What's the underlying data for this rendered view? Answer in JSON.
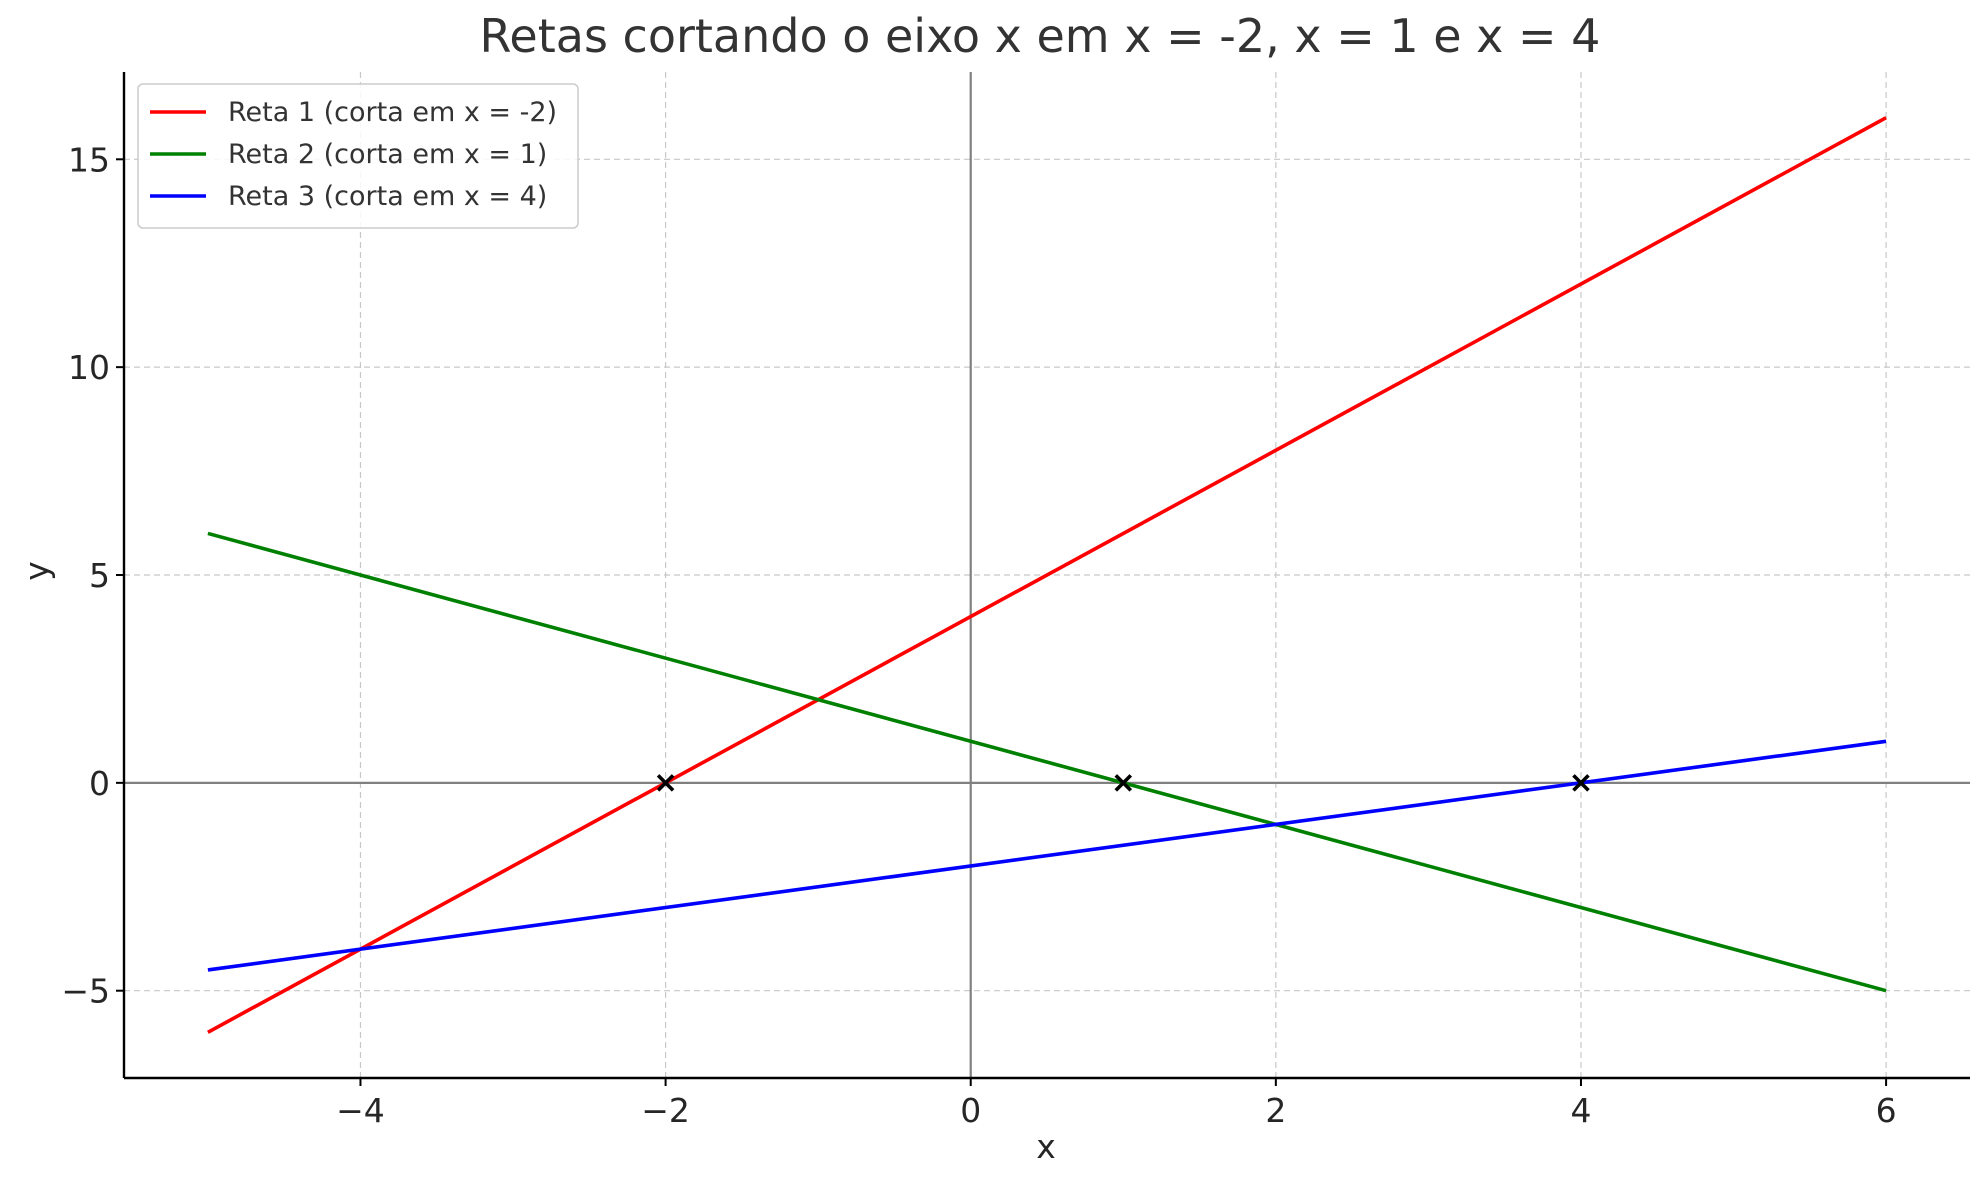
{
  "chart_data": {
    "type": "line",
    "title": "Retas cortando o eixo x em x = -2, x = 1 e x = 4",
    "xlabel": "x",
    "ylabel": "y",
    "xlim": [
      -5.55,
      6.55
    ],
    "ylim": [
      -7.1,
      17.1
    ],
    "xticks": [
      -4,
      -2,
      0,
      2,
      4,
      6
    ],
    "xtick_labels": [
      "−4",
      "−2",
      "0",
      "2",
      "4",
      "6"
    ],
    "yticks": [
      -5,
      0,
      5,
      10,
      15
    ],
    "ytick_labels": [
      "−5",
      "0",
      "5",
      "10",
      "15"
    ],
    "grid": true,
    "grid_style": "dashed",
    "legend_position": "top-left",
    "reference_lines": {
      "horizontal_y": 0,
      "vertical_x": 0,
      "color": "#808080"
    },
    "series": [
      {
        "name": "Reta 1 (corta em x = -2)",
        "color": "#ff0000",
        "x": [
          -5,
          6
        ],
        "y": [
          -6,
          16
        ]
      },
      {
        "name": "Reta 2 (corta em x = 1)",
        "color": "#008000",
        "x": [
          -5,
          6
        ],
        "y": [
          6,
          -5
        ]
      },
      {
        "name": "Reta 3 (corta em x = 4)",
        "color": "#0000ff",
        "x": [
          -5,
          6
        ],
        "y": [
          -4.5,
          1
        ]
      }
    ],
    "markers": {
      "symbol": "x",
      "color": "#000000",
      "points": [
        {
          "x": -2,
          "y": 0
        },
        {
          "x": 1,
          "y": 0
        },
        {
          "x": 4,
          "y": 0
        }
      ]
    }
  }
}
